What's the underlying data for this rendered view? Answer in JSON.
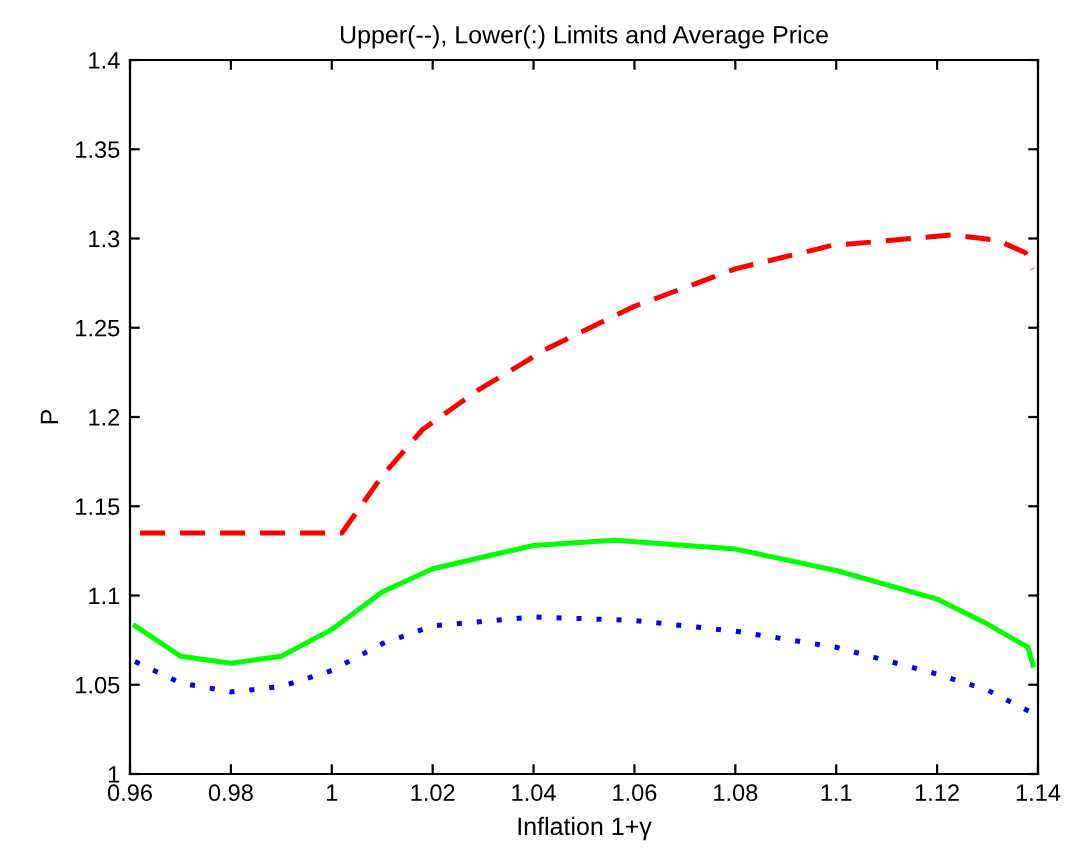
{
  "chart_data": {
    "type": "line",
    "title": "Upper(--), Lower(:) Limits and Average Price",
    "xlabel": "Inflation 1+γ",
    "ylabel": "P",
    "xlim": [
      0.96,
      1.14
    ],
    "ylim": [
      1,
      1.4
    ],
    "xticks": [
      0.96,
      0.98,
      1,
      1.02,
      1.04,
      1.06,
      1.08,
      1.1,
      1.12,
      1.14
    ],
    "yticks": [
      1,
      1.05,
      1.1,
      1.15,
      1.2,
      1.25,
      1.3,
      1.35,
      1.4
    ],
    "grid": false,
    "legend": false,
    "series": [
      {
        "color": "#ff0000",
        "line_style": "dashed",
        "x": [
          0.962,
          1.002,
          1.01,
          1.018,
          1.029,
          1.039,
          1.041,
          1.06,
          1.08,
          1.099,
          1.123,
          1.132,
          1.1375,
          1.139
        ],
        "values": [
          1.135,
          1.135,
          1.167,
          1.193,
          1.215,
          1.232,
          1.236,
          1.262,
          1.283,
          1.296,
          1.302,
          1.299,
          1.292,
          1.283
        ]
      },
      {
        "color": "#00ff00",
        "line_style": "solid",
        "x": [
          0.961,
          0.97,
          0.98,
          0.99,
          1.0,
          1.01,
          1.02,
          1.04,
          1.056,
          1.08,
          1.1,
          1.12,
          1.13,
          1.138,
          1.139
        ],
        "values": [
          1.083,
          1.066,
          1.062,
          1.066,
          1.081,
          1.102,
          1.115,
          1.128,
          1.131,
          1.126,
          1.114,
          1.098,
          1.084,
          1.071,
          1.061
        ]
      },
      {
        "color": "#0000ff",
        "line_style": "dotted",
        "x": [
          0.961,
          0.97,
          0.98,
          0.99,
          1.0,
          1.01,
          1.02,
          1.04,
          1.06,
          1.08,
          1.1,
          1.12,
          1.13,
          1.139
        ],
        "values": [
          1.063,
          1.051,
          1.046,
          1.049,
          1.058,
          1.073,
          1.083,
          1.088,
          1.086,
          1.08,
          1.071,
          1.056,
          1.047,
          1.034
        ]
      }
    ]
  }
}
